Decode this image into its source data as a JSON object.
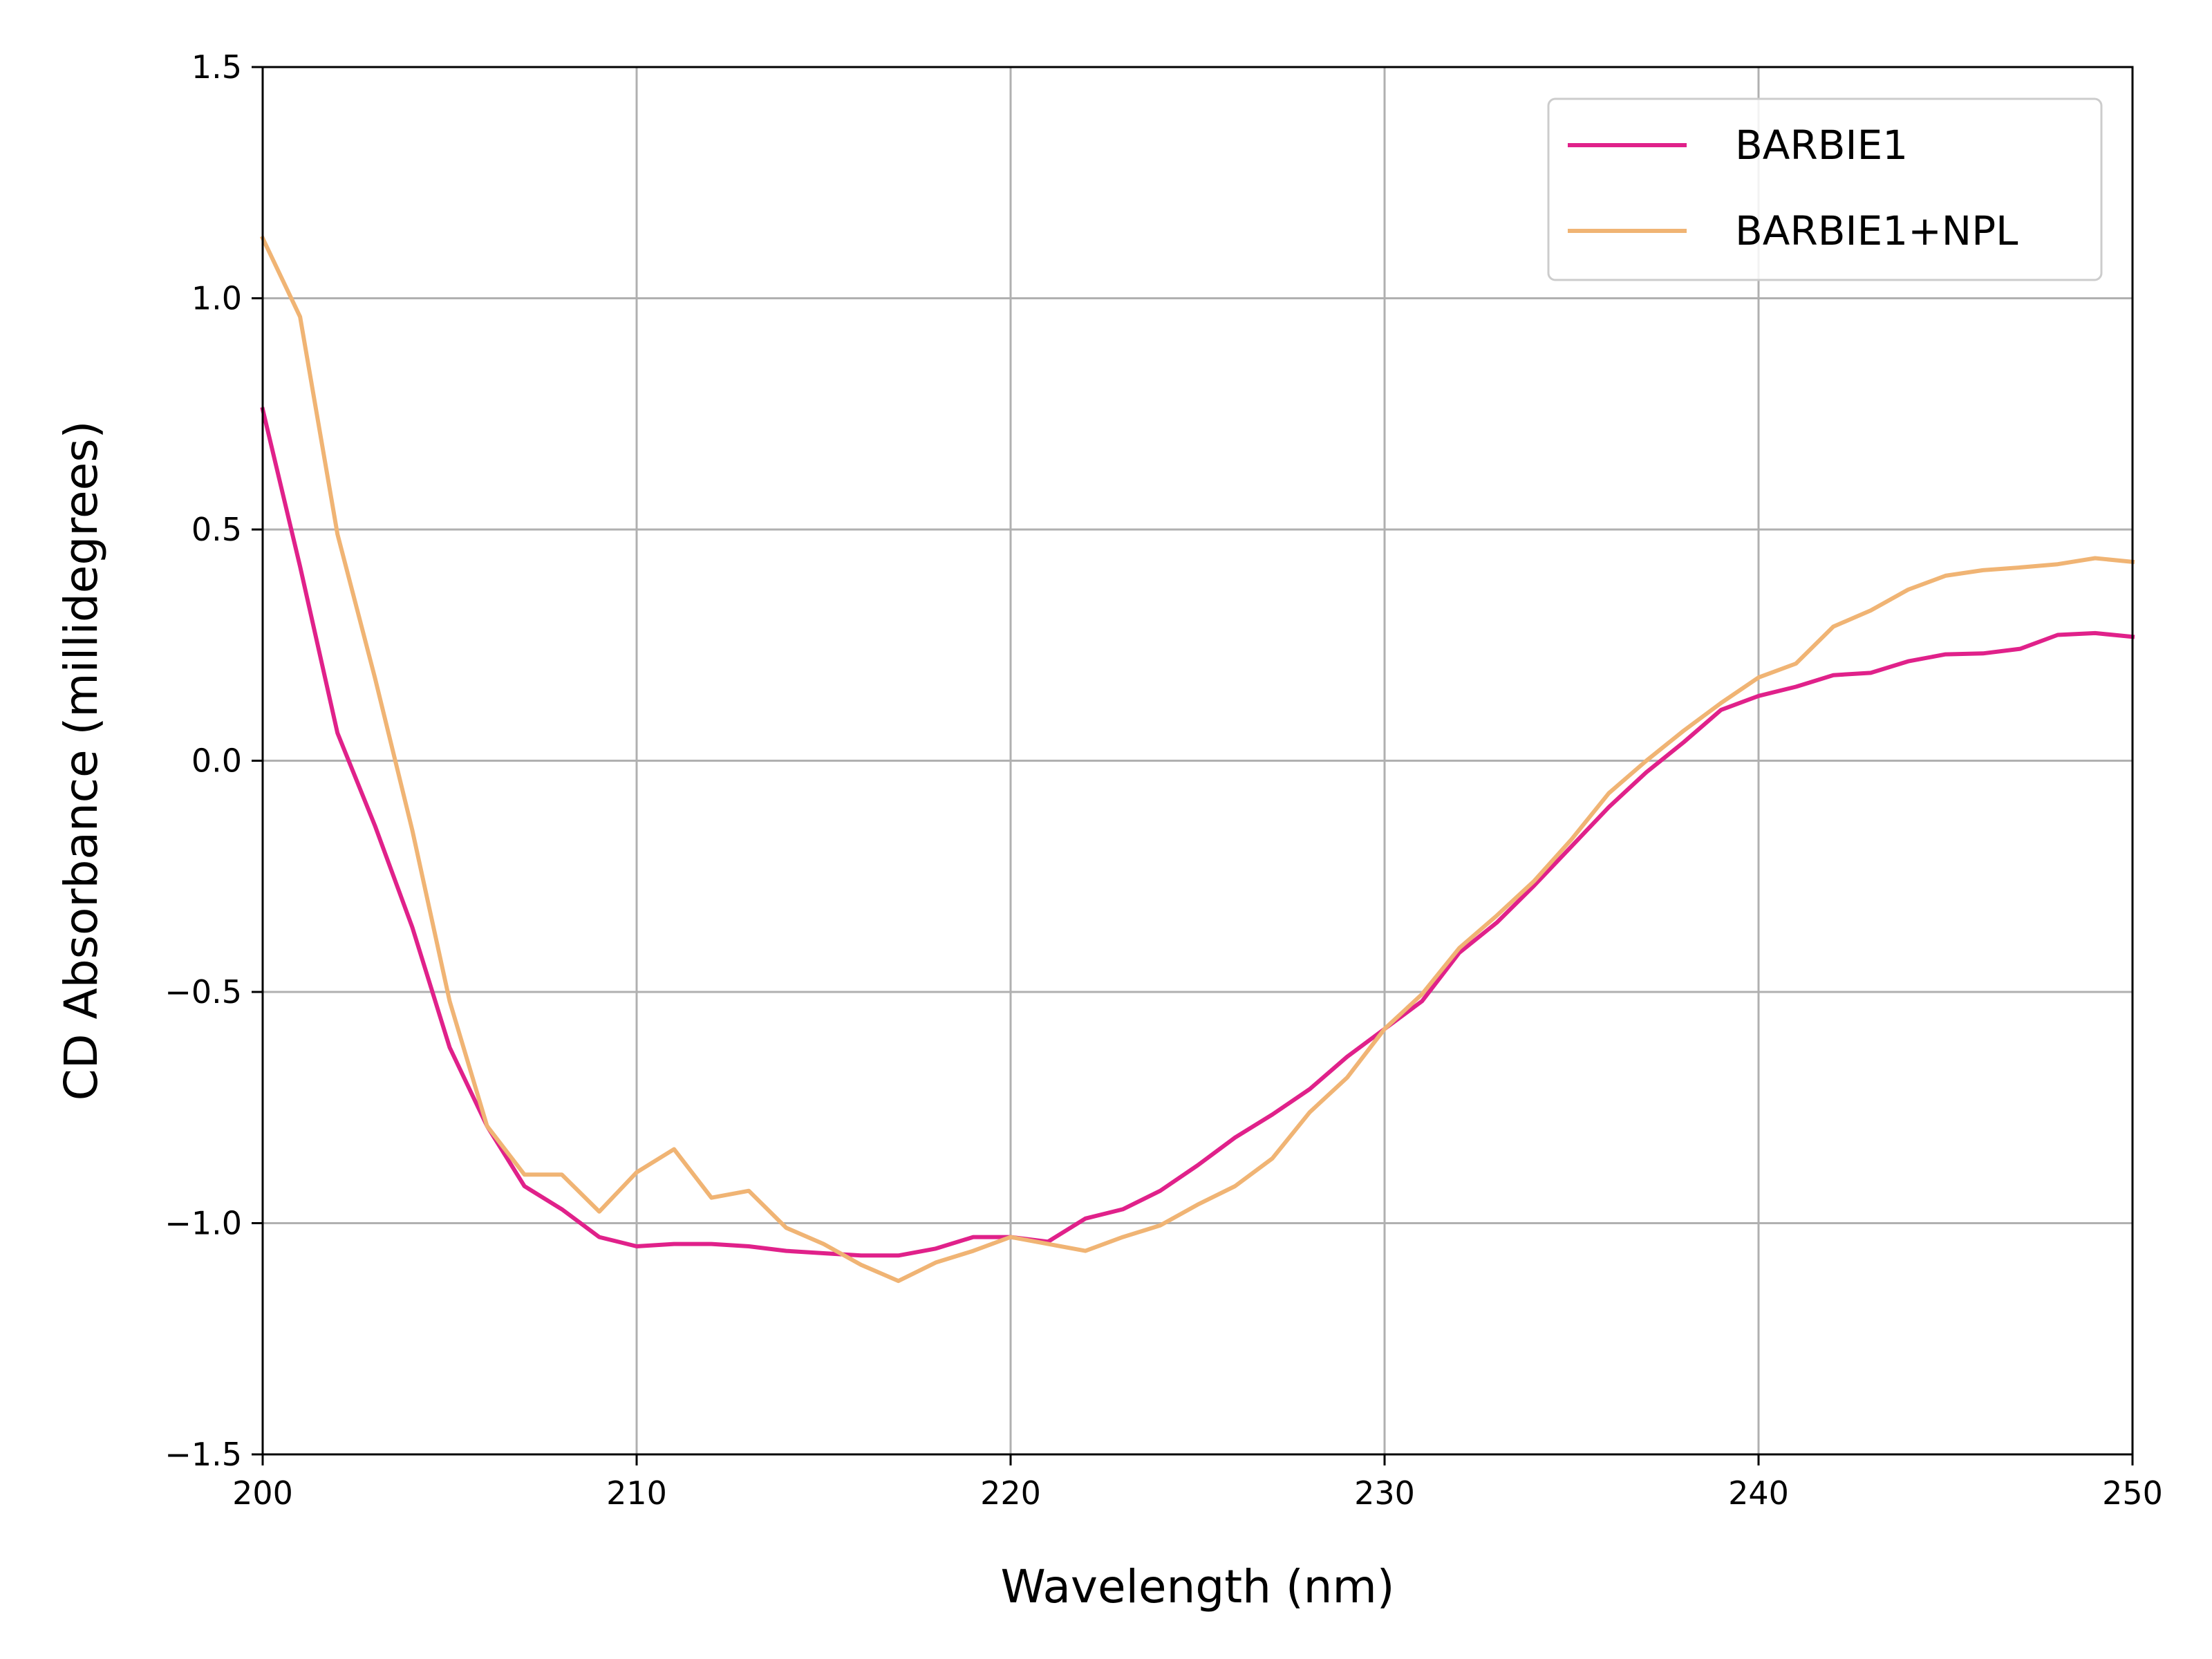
{
  "chart_data": {
    "type": "line",
    "title": "",
    "xlabel": "Wavelength (nm)",
    "ylabel": "CD Absorbance (millidegrees)",
    "xlim": [
      200,
      250
    ],
    "ylim": [
      -1.5,
      1.5
    ],
    "xticks": [
      200,
      210,
      220,
      230,
      240,
      250
    ],
    "xtick_labels": [
      "200",
      "210",
      "220",
      "230",
      "240",
      "250"
    ],
    "yticks": [
      -1.5,
      -1.0,
      -0.5,
      0.0,
      0.5,
      1.0,
      1.5
    ],
    "ytick_labels": [
      "−1.5",
      "−1.0",
      "−0.5",
      "0.0",
      "0.5",
      "1.0",
      "1.5"
    ],
    "grid": true,
    "legend_position": "top-right",
    "x": [
      200,
      201,
      202,
      203,
      204,
      205,
      206,
      207,
      208,
      209,
      210,
      211,
      212,
      213,
      214,
      215,
      216,
      217,
      218,
      219,
      220,
      221,
      222,
      223,
      224,
      225,
      226,
      227,
      228,
      229,
      230,
      231,
      232,
      233,
      234,
      235,
      236,
      237,
      238,
      239,
      240,
      241,
      242,
      243,
      244,
      245,
      246,
      247,
      248,
      249,
      250
    ],
    "series": [
      {
        "name": "BARBIE1",
        "color": "#e0218a",
        "values": [
          0.76,
          0.42,
          0.06,
          -0.14,
          -0.36,
          -0.62,
          -0.79,
          -0.92,
          -0.97,
          -1.03,
          -1.05,
          -1.045,
          -1.045,
          -1.05,
          -1.06,
          -1.065,
          -1.07,
          -1.07,
          -1.055,
          -1.03,
          -1.03,
          -1.04,
          -0.99,
          -0.97,
          -0.93,
          -0.875,
          -0.815,
          -0.765,
          -0.71,
          -0.64,
          -0.58,
          -0.52,
          -0.415,
          -0.35,
          -0.27,
          -0.185,
          -0.1,
          -0.025,
          0.04,
          0.11,
          0.14,
          0.16,
          0.185,
          0.19,
          0.215,
          0.23,
          0.232,
          0.242,
          0.272,
          0.276,
          0.268
        ]
      },
      {
        "name": "BARBIE1+NPL",
        "color": "#f0b474",
        "values": [
          1.13,
          0.96,
          0.49,
          0.18,
          -0.15,
          -0.52,
          -0.79,
          -0.895,
          -0.895,
          -0.975,
          -0.89,
          -0.84,
          -0.945,
          -0.93,
          -1.01,
          -1.045,
          -1.09,
          -1.125,
          -1.085,
          -1.06,
          -1.03,
          -1.045,
          -1.06,
          -1.03,
          -1.005,
          -0.96,
          -0.92,
          -0.86,
          -0.76,
          -0.685,
          -0.58,
          -0.505,
          -0.405,
          -0.335,
          -0.26,
          -0.17,
          -0.07,
          0.0,
          0.065,
          0.125,
          0.18,
          0.21,
          0.29,
          0.325,
          0.37,
          0.4,
          0.412,
          0.418,
          0.425,
          0.438,
          0.43
        ]
      }
    ]
  }
}
